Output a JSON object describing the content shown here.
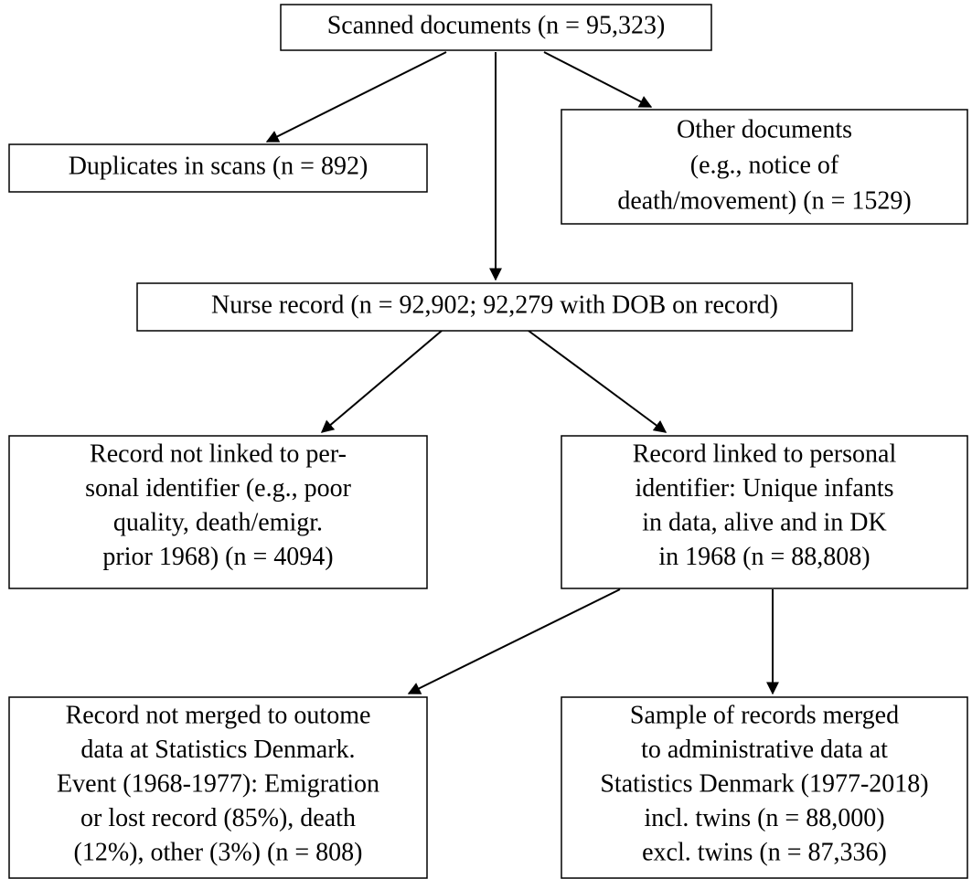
{
  "nodes": [
    {
      "lines": [
        "Scanned documents (n = 95,323)"
      ]
    },
    {
      "lines": [
        "Duplicates in scans (n = 892)"
      ]
    },
    {
      "lines": [
        "Other documents",
        "(e.g., notice of",
        "death/movement) (n = 1529)"
      ]
    },
    {
      "lines": [
        "Nurse record (n = 92,902; 92,279 with DOB on record)"
      ]
    },
    {
      "lines": [
        "Record not linked to per-",
        "sonal identifier (e.g., poor",
        "quality, death/emigr.",
        "prior 1968) (n = 4094)"
      ]
    },
    {
      "lines": [
        "Record linked to personal",
        "identifier: Unique infants",
        "in data, alive and in DK",
        "in 1968 (n = 88,808)"
      ]
    },
    {
      "lines": [
        "Record not merged to outome",
        "data at Statistics Denmark.",
        "Event (1968-1977): Emigration",
        "or lost record (85%), death",
        "(12%), other (3%) (n = 808)"
      ]
    },
    {
      "lines": [
        "Sample of records merged",
        "to administrative data at",
        "Statistics Denmark (1977-2018)",
        "incl. twins (n = 88,000)",
        "excl. twins (n = 87,336)"
      ]
    }
  ]
}
